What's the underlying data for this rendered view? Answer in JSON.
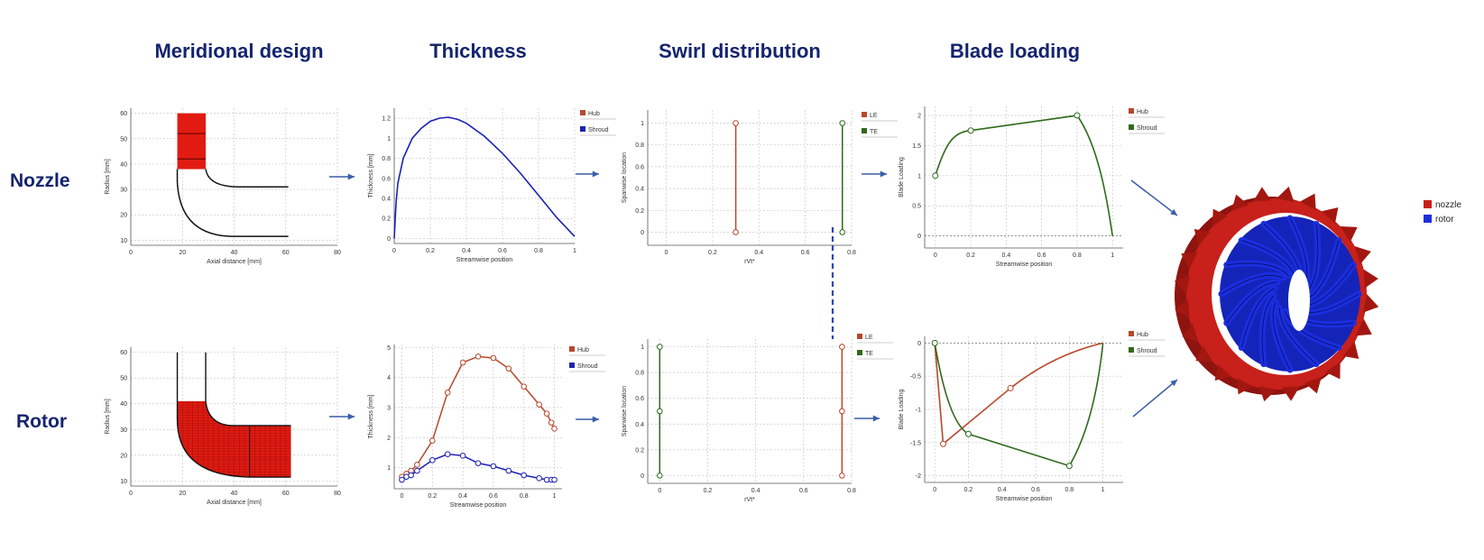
{
  "columns": [
    "Meridional design",
    "Thickness",
    "Swirl distribution",
    "Blade loading"
  ],
  "rows": [
    "Nozzle",
    "Rotor"
  ],
  "colors": {
    "title": "#14246e",
    "hub": "#b8472a",
    "shroud_blue": "#1c21b3",
    "green": "#2e6a1c",
    "red_fill": "#e11b12",
    "arrow": "#3a5ea8",
    "grid": "#c9c9c9",
    "nozzle": "#c8201a",
    "rotor": "#1a2ee0"
  },
  "nozzle": {
    "meridional": {
      "xlabel": "Axial distance [mm]",
      "ylabel": "Radius [mm]",
      "xticks": [
        "0",
        "20",
        "40",
        "60",
        "80"
      ],
      "yticks": [
        "10",
        "20",
        "30",
        "40",
        "50",
        "60"
      ],
      "xlim": [
        0,
        80
      ],
      "ylim": [
        8,
        62
      ]
    },
    "thickness": {
      "xlabel": "Streamwise position",
      "ylabel": "Thickness [mm]",
      "xticks": [
        "0",
        "0.2",
        "0.4",
        "0.6",
        "0.8",
        "1"
      ],
      "yticks": [
        "0",
        "0.2",
        "0.4",
        "0.6",
        "0.8",
        "1",
        "1.2"
      ],
      "xlim": [
        0,
        1
      ],
      "ylim": [
        -0.05,
        1.3
      ],
      "legend": [
        "Hub",
        "Shroud"
      ]
    },
    "swirl": {
      "xlabel": "rVt*",
      "ylabel": "Spanwise location",
      "xticks": [
        "0",
        "0.2",
        "0.4",
        "0.6",
        "0.8"
      ],
      "yticks": [
        "0",
        "0.2",
        "0.4",
        "0.6",
        "0.8",
        "1"
      ],
      "xlim": [
        -0.08,
        0.8
      ],
      "ylim": [
        -0.12,
        1.12
      ],
      "legend": [
        "LE",
        "TE"
      ]
    },
    "loading": {
      "xlabel": "Streamwise position",
      "ylabel": "Blade Loading",
      "xticks": [
        "0",
        "0.2",
        "0.4",
        "0.6",
        "0.8",
        "1"
      ],
      "yticks": [
        "0",
        "0.5",
        "1",
        "1.5",
        "2"
      ],
      "xlim": [
        -0.06,
        1.06
      ],
      "ylim": [
        -0.2,
        2.15
      ],
      "legend": [
        "Hub",
        "Shroud"
      ]
    }
  },
  "rotor": {
    "meridional": {
      "xlabel": "Axial distance [mm]",
      "ylabel": "Radius [mm]",
      "xticks": [
        "0",
        "20",
        "40",
        "60",
        "80"
      ],
      "yticks": [
        "10",
        "20",
        "30",
        "40",
        "50",
        "60"
      ],
      "xlim": [
        0,
        80
      ],
      "ylim": [
        8,
        62
      ]
    },
    "thickness": {
      "xlabel": "Streamwise position",
      "ylabel": "Thickness [mm]",
      "xticks": [
        "0",
        "0.2",
        "0.4",
        "0.6",
        "0.8",
        "1"
      ],
      "yticks": [
        "1",
        "2",
        "3",
        "4",
        "5"
      ],
      "xlim": [
        -0.05,
        1.05
      ],
      "ylim": [
        0.3,
        5.1
      ],
      "legend": [
        "Hub",
        "Shroud"
      ]
    },
    "swirl": {
      "xlabel": "rVt*",
      "ylabel": "Spanwise location",
      "xticks": [
        "0",
        "0.2",
        "0.4",
        "0.6",
        "0.8"
      ],
      "yticks": [
        "0",
        "0.2",
        "0.4",
        "0.6",
        "0.8",
        "1"
      ],
      "xlim": [
        -0.05,
        0.8
      ],
      "ylim": [
        -0.06,
        1.06
      ],
      "legend": [
        "LE",
        "TE"
      ]
    },
    "loading": {
      "xlabel": "Streamwise position",
      "ylabel": "Blade Loading",
      "xticks": [
        "0",
        "0.2",
        "0.4",
        "0.6",
        "0.8",
        "1"
      ],
      "yticks": [
        "-2",
        "-1.5",
        "-1",
        "-0.5",
        "0"
      ],
      "xlim": [
        -0.06,
        1.12
      ],
      "ylim": [
        -2.1,
        0.1
      ],
      "legend": [
        "Hub",
        "Shroud"
      ]
    }
  },
  "chart_data": [
    {
      "type": "line",
      "id": "nozzle-thickness",
      "title": "Thickness",
      "series": [
        {
          "name": "Shroud",
          "x": [
            0,
            0.01,
            0.02,
            0.05,
            0.1,
            0.15,
            0.2,
            0.25,
            0.3,
            0.35,
            0.4,
            0.5,
            0.6,
            0.7,
            0.8,
            0.9,
            1
          ],
          "y": [
            0,
            0.35,
            0.55,
            0.8,
            1.0,
            1.1,
            1.17,
            1.2,
            1.21,
            1.19,
            1.15,
            1.02,
            0.85,
            0.65,
            0.43,
            0.21,
            0.02
          ]
        }
      ]
    },
    {
      "type": "line",
      "id": "nozzle-swirl",
      "title": "Swirl distribution",
      "series": [
        {
          "name": "LE",
          "x": [
            0.3,
            0.3
          ],
          "y": [
            0,
            1
          ]
        },
        {
          "name": "TE",
          "x": [
            0.76,
            0.76
          ],
          "y": [
            0,
            1
          ]
        }
      ]
    },
    {
      "type": "line",
      "id": "nozzle-loading",
      "title": "Blade loading",
      "series": [
        {
          "name": "Shroud",
          "x": [
            0,
            0.2,
            0.8,
            1
          ],
          "y": [
            1.0,
            1.75,
            2.0,
            0
          ]
        }
      ]
    },
    {
      "type": "line",
      "id": "rotor-thickness",
      "title": "Thickness",
      "series": [
        {
          "name": "Hub",
          "x": [
            0,
            0.03,
            0.06,
            0.1,
            0.2,
            0.3,
            0.4,
            0.5,
            0.6,
            0.7,
            0.8,
            0.9,
            0.95,
            0.98,
            1
          ],
          "y": [
            0.7,
            0.8,
            0.9,
            1.1,
            1.9,
            3.5,
            4.5,
            4.7,
            4.65,
            4.3,
            3.7,
            3.1,
            2.8,
            2.5,
            2.3
          ]
        },
        {
          "name": "Shroud",
          "x": [
            0,
            0.03,
            0.06,
            0.1,
            0.2,
            0.3,
            0.4,
            0.5,
            0.6,
            0.7,
            0.8,
            0.9,
            0.95,
            0.98,
            1
          ],
          "y": [
            0.6,
            0.7,
            0.75,
            0.9,
            1.25,
            1.45,
            1.4,
            1.15,
            1.05,
            0.9,
            0.75,
            0.65,
            0.6,
            0.6,
            0.6
          ]
        }
      ]
    },
    {
      "type": "line",
      "id": "rotor-swirl",
      "title": "Swirl distribution",
      "series": [
        {
          "name": "LE",
          "x": [
            0.76,
            0.76,
            0.76
          ],
          "y": [
            0,
            0.5,
            1
          ]
        },
        {
          "name": "TE",
          "x": [
            0,
            0,
            0
          ],
          "y": [
            0,
            0.5,
            1
          ]
        }
      ]
    },
    {
      "type": "line",
      "id": "rotor-loading",
      "title": "Blade loading",
      "series": [
        {
          "name": "Hub",
          "x": [
            0,
            0.05,
            0.45,
            1
          ],
          "y": [
            0,
            -1.52,
            -0.68,
            0
          ]
        },
        {
          "name": "Shroud",
          "x": [
            0,
            0.2,
            0.8,
            1
          ],
          "y": [
            0,
            -1.37,
            -1.85,
            0
          ]
        }
      ]
    }
  ],
  "impeller_legend": [
    "nozzle",
    "rotor"
  ]
}
